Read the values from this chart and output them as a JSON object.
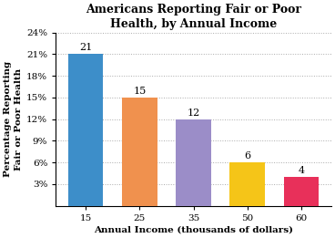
{
  "title": "Americans Reporting Fair or Poor\nHealth, by Annual Income",
  "categories": [
    "15",
    "25",
    "35",
    "50",
    "60"
  ],
  "values": [
    21,
    15,
    12,
    6,
    4
  ],
  "bar_colors": [
    "#3d8ec9",
    "#f0914e",
    "#9b8dc8",
    "#f5c518",
    "#e8305a"
  ],
  "xlabel": "Annual Income (thousands of dollars)",
  "ylabel": "Percentage Reporting\nFair or Poor Health",
  "ylim": [
    0,
    24
  ],
  "yticks": [
    3,
    6,
    9,
    12,
    15,
    18,
    21,
    24
  ],
  "ytick_labels": [
    "3%",
    "6%",
    "9%",
    "12%",
    "15%",
    "18%",
    "21%",
    "24%"
  ],
  "title_fontsize": 9,
  "axis_label_fontsize": 7.5,
  "tick_fontsize": 7.5,
  "bar_label_fontsize": 8,
  "background_color": "#ffffff"
}
